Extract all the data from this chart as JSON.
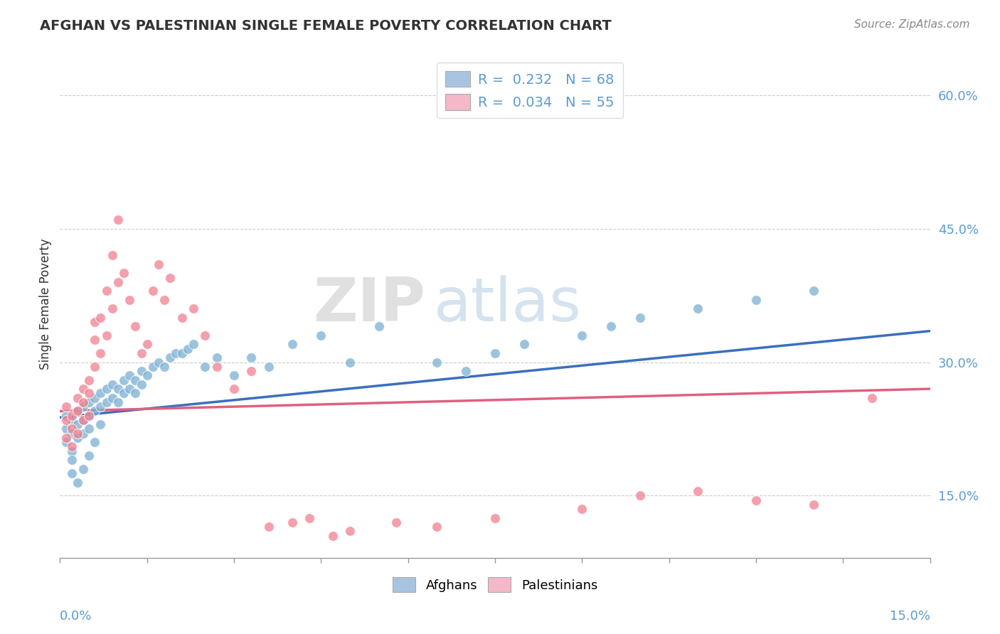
{
  "title": "AFGHAN VS PALESTINIAN SINGLE FEMALE POVERTY CORRELATION CHART",
  "source": "Source: ZipAtlas.com",
  "ylabel": "Single Female Poverty",
  "y_ticks": [
    0.15,
    0.3,
    0.45,
    0.6
  ],
  "x_range": [
    0.0,
    0.15
  ],
  "y_range": [
    0.08,
    0.65
  ],
  "afghan_color": "#7bafd4",
  "palestinian_color": "#f08090",
  "afghan_line_color": "#3a6fbf",
  "palestinian_line_color": "#e06080",
  "legend_r1": "R =  0.232",
  "legend_n1": "N = 68",
  "legend_r2": "R =  0.034",
  "legend_n2": "N = 55",
  "legend_color1": "#a8c4e0",
  "legend_color2": "#f4b8c8",
  "watermark_zip": "ZIP",
  "watermark_atlas": "atlas",
  "afghans_x": [
    0.001,
    0.001,
    0.001,
    0.002,
    0.002,
    0.002,
    0.002,
    0.002,
    0.003,
    0.003,
    0.003,
    0.003,
    0.004,
    0.004,
    0.004,
    0.004,
    0.005,
    0.005,
    0.005,
    0.005,
    0.006,
    0.006,
    0.006,
    0.007,
    0.007,
    0.007,
    0.008,
    0.008,
    0.009,
    0.009,
    0.01,
    0.01,
    0.011,
    0.011,
    0.012,
    0.012,
    0.013,
    0.013,
    0.014,
    0.014,
    0.015,
    0.016,
    0.017,
    0.018,
    0.019,
    0.02,
    0.021,
    0.022,
    0.023,
    0.025,
    0.027,
    0.03,
    0.033,
    0.036,
    0.04,
    0.045,
    0.05,
    0.055,
    0.065,
    0.07,
    0.075,
    0.08,
    0.09,
    0.095,
    0.1,
    0.11,
    0.12,
    0.13
  ],
  "afghans_y": [
    0.24,
    0.225,
    0.21,
    0.235,
    0.22,
    0.2,
    0.19,
    0.175,
    0.245,
    0.23,
    0.215,
    0.165,
    0.25,
    0.235,
    0.22,
    0.18,
    0.255,
    0.24,
    0.225,
    0.195,
    0.26,
    0.245,
    0.21,
    0.265,
    0.25,
    0.23,
    0.27,
    0.255,
    0.275,
    0.26,
    0.27,
    0.255,
    0.28,
    0.265,
    0.285,
    0.27,
    0.28,
    0.265,
    0.29,
    0.275,
    0.285,
    0.295,
    0.3,
    0.295,
    0.305,
    0.31,
    0.31,
    0.315,
    0.32,
    0.295,
    0.305,
    0.285,
    0.305,
    0.295,
    0.32,
    0.33,
    0.3,
    0.34,
    0.3,
    0.29,
    0.31,
    0.32,
    0.33,
    0.34,
    0.35,
    0.36,
    0.37,
    0.38
  ],
  "palestinians_x": [
    0.001,
    0.001,
    0.001,
    0.002,
    0.002,
    0.002,
    0.003,
    0.003,
    0.003,
    0.004,
    0.004,
    0.004,
    0.005,
    0.005,
    0.005,
    0.006,
    0.006,
    0.006,
    0.007,
    0.007,
    0.008,
    0.008,
    0.009,
    0.009,
    0.01,
    0.01,
    0.011,
    0.012,
    0.013,
    0.014,
    0.015,
    0.016,
    0.017,
    0.018,
    0.019,
    0.021,
    0.023,
    0.025,
    0.027,
    0.03,
    0.033,
    0.036,
    0.04,
    0.043,
    0.047,
    0.05,
    0.058,
    0.065,
    0.075,
    0.09,
    0.1,
    0.11,
    0.12,
    0.13,
    0.14
  ],
  "palestinians_y": [
    0.25,
    0.235,
    0.215,
    0.24,
    0.225,
    0.205,
    0.26,
    0.245,
    0.22,
    0.27,
    0.255,
    0.235,
    0.28,
    0.265,
    0.24,
    0.345,
    0.325,
    0.295,
    0.35,
    0.31,
    0.38,
    0.33,
    0.42,
    0.36,
    0.46,
    0.39,
    0.4,
    0.37,
    0.34,
    0.31,
    0.32,
    0.38,
    0.41,
    0.37,
    0.395,
    0.35,
    0.36,
    0.33,
    0.295,
    0.27,
    0.29,
    0.115,
    0.12,
    0.125,
    0.105,
    0.11,
    0.12,
    0.115,
    0.125,
    0.135,
    0.15,
    0.155,
    0.145,
    0.14,
    0.26
  ],
  "afghan_trend": [
    0.238,
    0.335
  ],
  "palestinian_trend": [
    0.245,
    0.27
  ]
}
